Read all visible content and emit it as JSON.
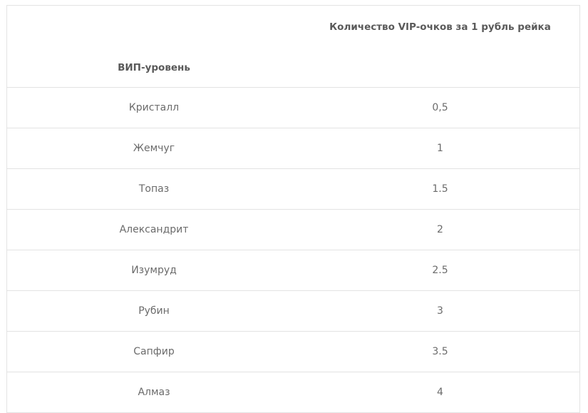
{
  "table": {
    "headers": [
      "ВИП-уровень",
      "Количество VIP-очков за 1 рубль рейка"
    ],
    "rows": [
      [
        "Кристалл",
        "0,5"
      ],
      [
        "Жемчуг",
        "1"
      ],
      [
        "Топаз",
        "1.5"
      ],
      [
        "Александрит",
        "2"
      ],
      [
        "Изумруд",
        "2.5"
      ],
      [
        "Рубин",
        "3"
      ],
      [
        "Сапфир",
        "3.5"
      ],
      [
        "Алмаз",
        "4"
      ]
    ]
  }
}
